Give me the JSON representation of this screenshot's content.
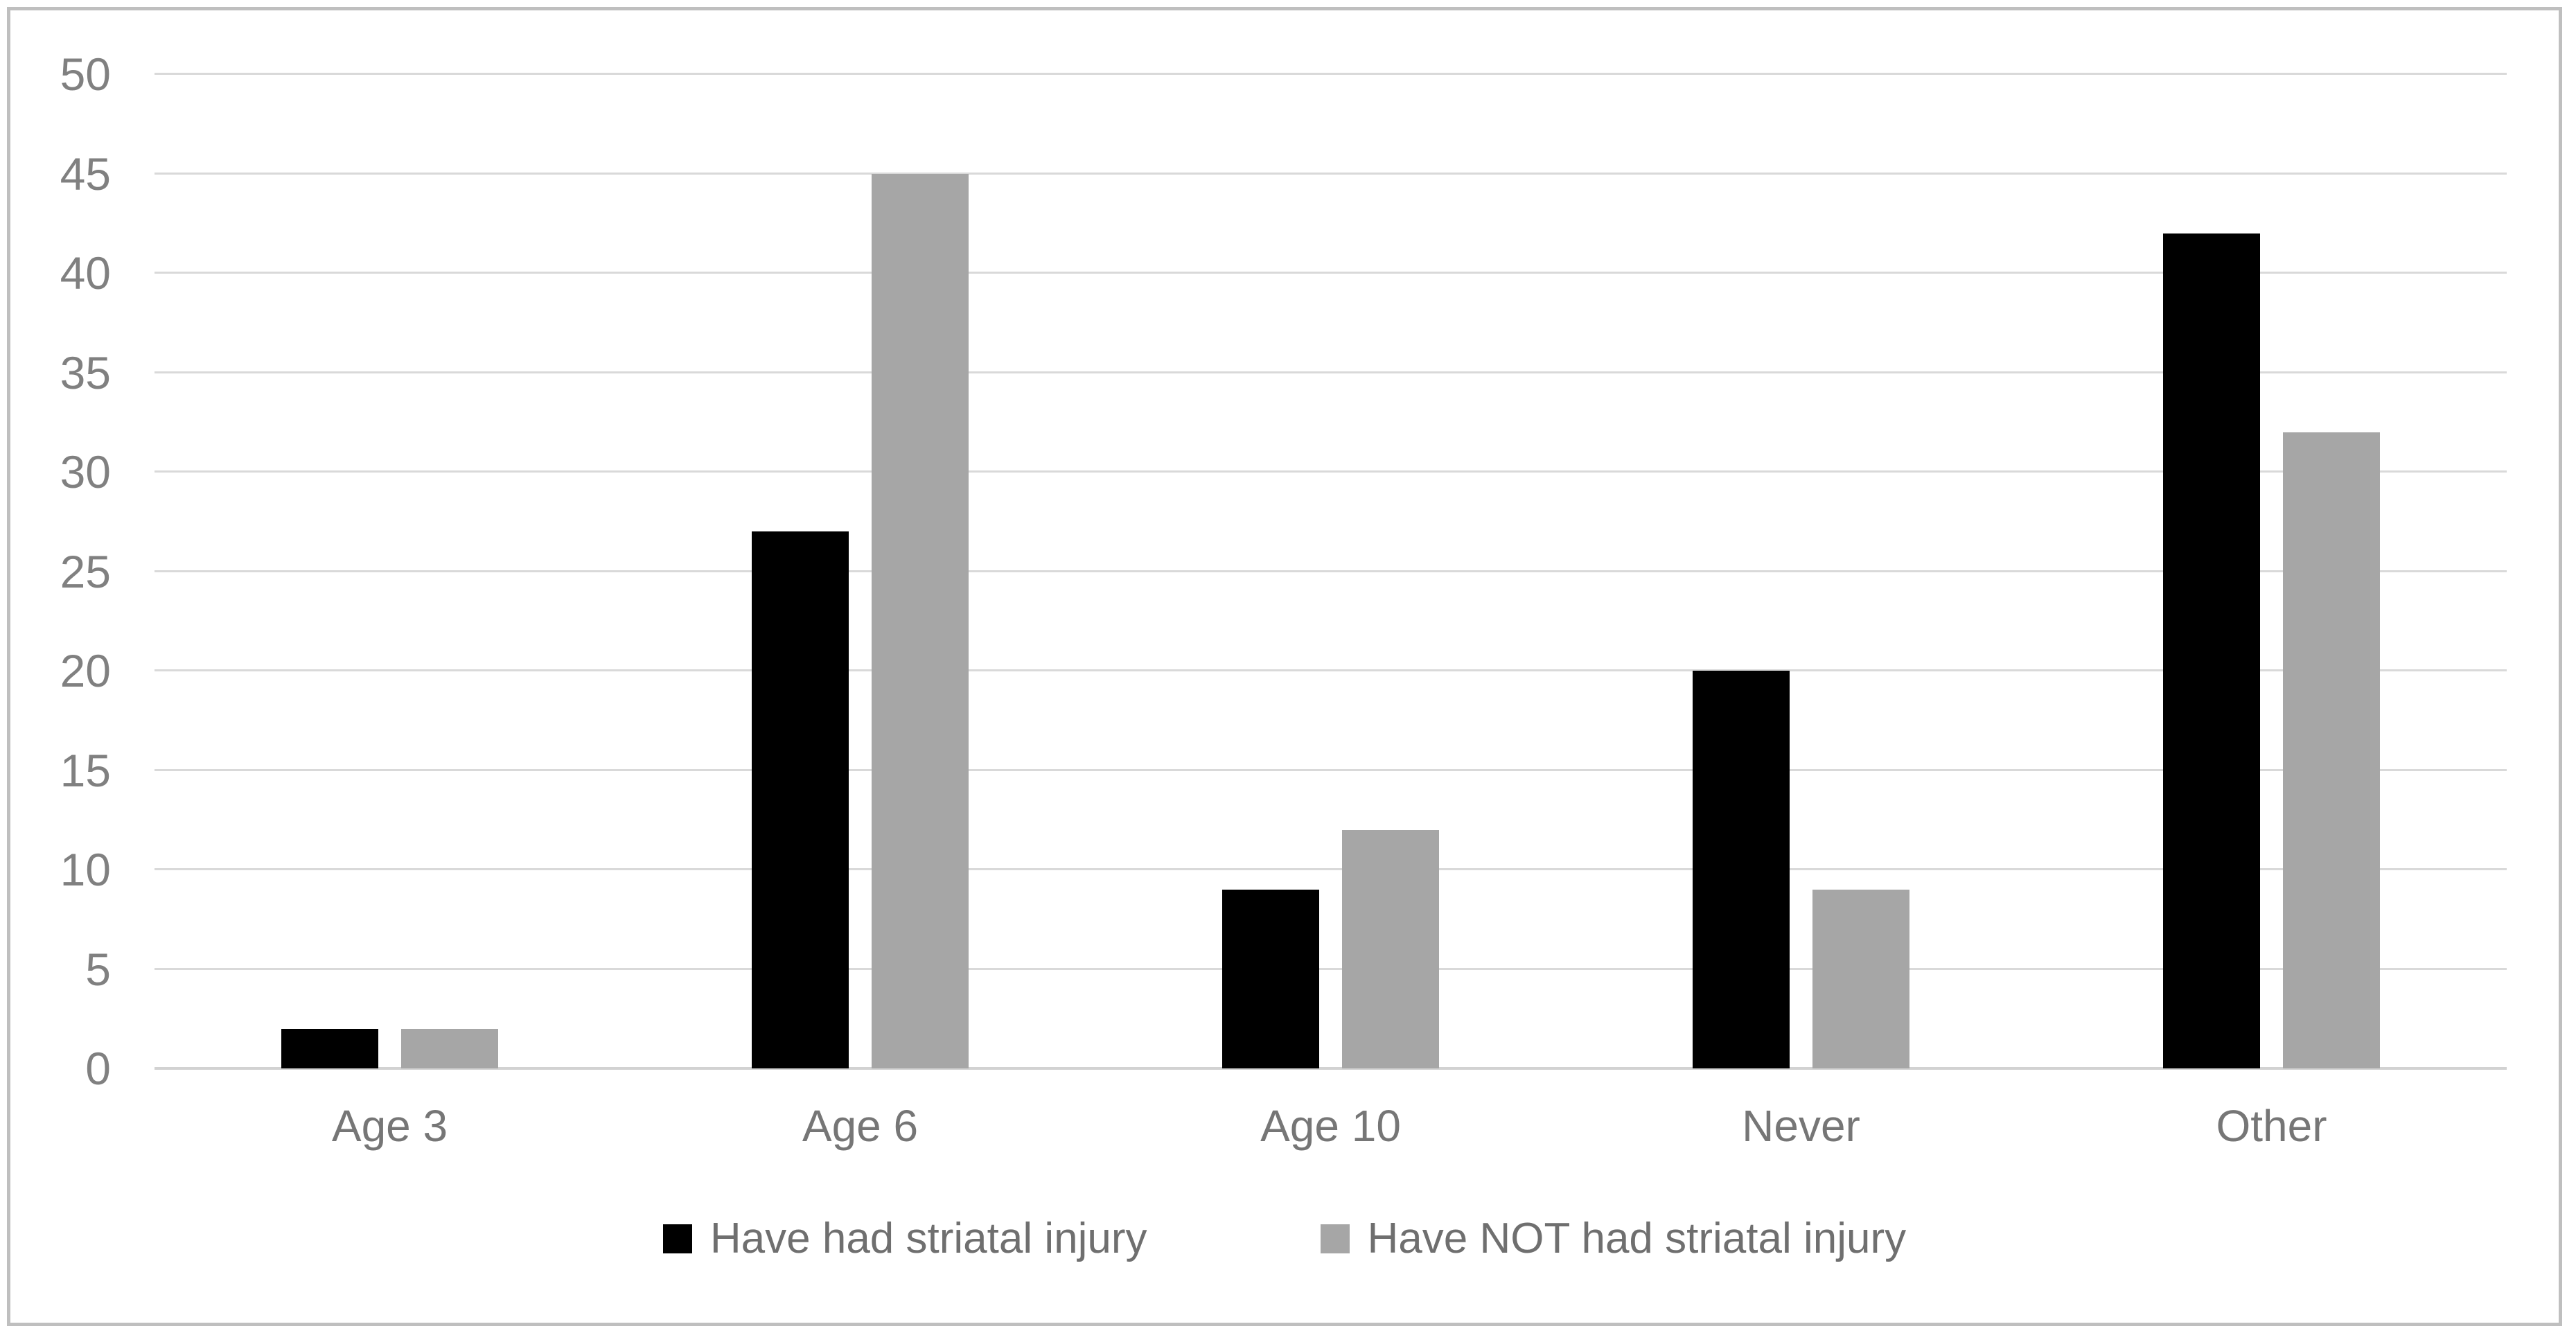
{
  "chart_data": {
    "type": "bar",
    "categories": [
      "Age 3",
      "Age 6",
      "Age 10",
      "Never",
      "Other"
    ],
    "series": [
      {
        "name": "Have had striatal injury",
        "color": "#000000",
        "values": [
          2,
          27,
          9,
          20,
          42
        ]
      },
      {
        "name": "Have NOT had striatal injury",
        "color": "#a6a6a6",
        "values": [
          2,
          45,
          12,
          9,
          32
        ]
      }
    ],
    "title": "",
    "xlabel": "",
    "ylabel": "",
    "ylim": [
      0,
      50
    ],
    "yticks": [
      0,
      5,
      10,
      15,
      20,
      25,
      30,
      35,
      40,
      45,
      50
    ],
    "grid": "horizontal",
    "legend_position": "bottom"
  },
  "style": {
    "background": "#ffffff",
    "border_color": "#bfbfbf",
    "gridline_color": "#d9d9d9",
    "baseline_color": "#d2d2d2",
    "tick_label_color": "#808080",
    "category_label_color": "#767676",
    "legend_label_color": "#6f6f6f"
  }
}
